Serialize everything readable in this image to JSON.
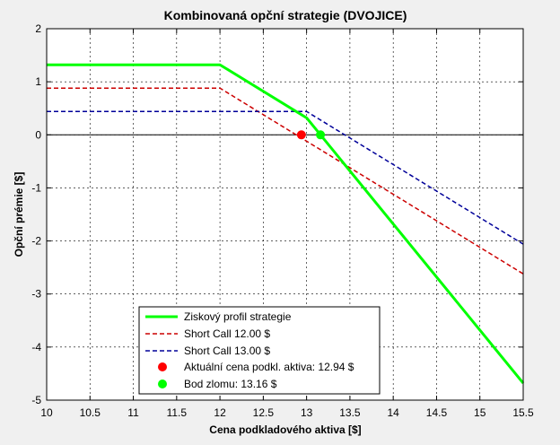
{
  "chart_data": {
    "type": "line",
    "title": "Kombinovaná opční strategie (DVOJICE)",
    "xlabel": "Cena podkladového aktiva [$]",
    "ylabel": "Opční prémie [$]",
    "xlim": [
      10,
      15.5
    ],
    "ylim": [
      -5,
      2
    ],
    "xticks": [
      "10",
      "10.5",
      "11",
      "11.5",
      "12",
      "12.5",
      "13",
      "13.5",
      "14",
      "14.5",
      "15",
      "15.5"
    ],
    "yticks": [
      "2",
      "1",
      "0",
      "-1",
      "-2",
      "-3",
      "-4",
      "-5"
    ],
    "grid": true,
    "legend_position": "bottom-center",
    "series": [
      {
        "name": "Ziskový profil strategie",
        "color": "#00ff00",
        "style": "solid",
        "x": [
          10,
          12,
          13,
          15.5
        ],
        "y": [
          1.32,
          1.32,
          0.32,
          -4.68
        ]
      },
      {
        "name": "Short Call  12.00 $",
        "color": "#cc0000",
        "style": "dashed",
        "x": [
          10,
          12,
          15.5
        ],
        "y": [
          0.88,
          0.88,
          -2.62
        ]
      },
      {
        "name": "Short Call  13.00 $",
        "color": "#000099",
        "style": "dashed",
        "x": [
          10,
          13,
          15.5
        ],
        "y": [
          0.44,
          0.44,
          -2.06
        ]
      }
    ],
    "markers": [
      {
        "name": "Aktuální cena podkl. aktiva:  12.94 $",
        "x": 12.94,
        "y": 0,
        "color": "#ff0000"
      },
      {
        "name": "Bod zlomu:  13.16 $",
        "x": 13.16,
        "y": 0,
        "color": "#00ff00"
      }
    ],
    "zero_line": 0
  }
}
